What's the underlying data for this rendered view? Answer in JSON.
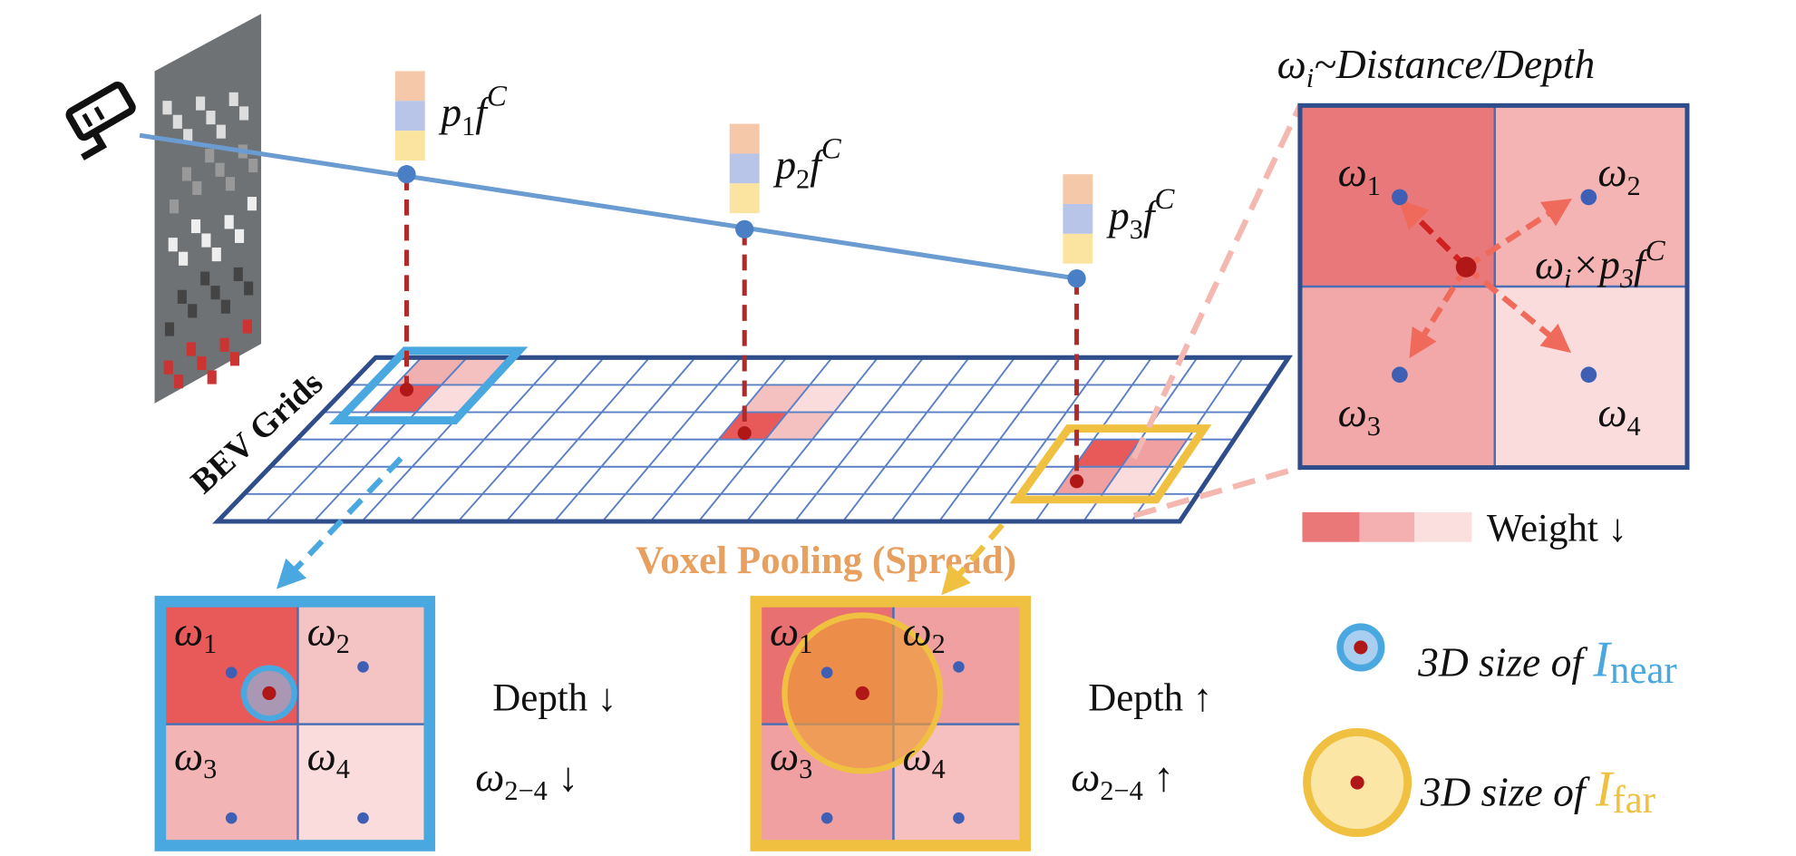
{
  "camera_features": [
    {
      "p": "p",
      "sub": "1",
      "f": "f",
      "sup": "C"
    },
    {
      "p": "p",
      "sub": "2",
      "f": "f",
      "sup": "C"
    },
    {
      "p": "p",
      "sub": "3",
      "f": "f",
      "sup": "C"
    }
  ],
  "bev_label": "BEV Grids",
  "pooling_label": "Voxel Pooling (Spread)",
  "zoom": {
    "title": {
      "w": "ω",
      "sub": "i",
      "rest": "~Distance/Depth"
    },
    "weights": [
      {
        "w": "ω",
        "sub": "1"
      },
      {
        "w": "ω",
        "sub": "2"
      },
      {
        "w": "ω",
        "sub": "3"
      },
      {
        "w": "ω",
        "sub": "4"
      }
    ],
    "spread": {
      "w": "ω",
      "sub": "i",
      "mid": "×p",
      "sub2": "3",
      "f": "f",
      "sup": "C"
    }
  },
  "legend": {
    "weight": "Weight ↓",
    "near": {
      "text": "3D size of ",
      "I": "I",
      "sub": "near"
    },
    "far": {
      "text": "3D size of ",
      "I": "I",
      "sub": "far"
    }
  },
  "near_example": {
    "weights": [
      {
        "w": "ω",
        "sub": "1"
      },
      {
        "w": "ω",
        "sub": "2"
      },
      {
        "w": "ω",
        "sub": "3"
      },
      {
        "w": "ω",
        "sub": "4"
      }
    ],
    "depth": "Depth ↓",
    "omega": {
      "w": "ω",
      "sub": "2−4",
      "arrow": " ↓"
    }
  },
  "far_example": {
    "weights": [
      {
        "w": "ω",
        "sub": "1"
      },
      {
        "w": "ω",
        "sub": "2"
      },
      {
        "w": "ω",
        "sub": "3"
      },
      {
        "w": "ω",
        "sub": "4"
      }
    ],
    "depth": "Depth ↑",
    "omega": {
      "w": "ω",
      "sub": "2−4",
      "arrow": " ↑"
    }
  }
}
